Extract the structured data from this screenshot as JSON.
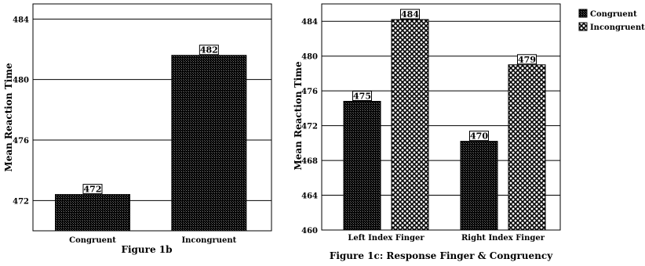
{
  "chart_data": [
    {
      "type": "bar",
      "title": "Figure 1b",
      "ylabel": "Mean Reaction Time",
      "xlabel": "",
      "categories": [
        "Congruent",
        "Incongruent"
      ],
      "values": [
        472.4,
        481.6
      ],
      "data_labels": [
        "472",
        "482"
      ],
      "yticks": [
        472,
        476,
        480,
        484
      ],
      "ylim": [
        470,
        485
      ],
      "grid": true,
      "pattern": "fine-crosshatch",
      "color": "#111111"
    },
    {
      "type": "bar",
      "title": "Figure 1c: Response Finger & Congruency",
      "ylabel": "Mean Reaction Time",
      "xlabel": "",
      "categories": [
        "Left Index Finger",
        "Right Index Finger"
      ],
      "ylim": [
        460,
        486
      ],
      "yticks": [
        460,
        464,
        468,
        472,
        476,
        480,
        484
      ],
      "grid": true,
      "legend_position": "right",
      "series": [
        {
          "name": "Congruent",
          "values": [
            474.8,
            470.2
          ],
          "data_labels": [
            "475",
            "470"
          ],
          "pattern": "fine-crosshatch"
        },
        {
          "name": "Incongruent",
          "values": [
            484.2,
            479.0
          ],
          "data_labels": [
            "484",
            "479"
          ],
          "pattern": "diamond-lattice"
        }
      ]
    }
  ]
}
